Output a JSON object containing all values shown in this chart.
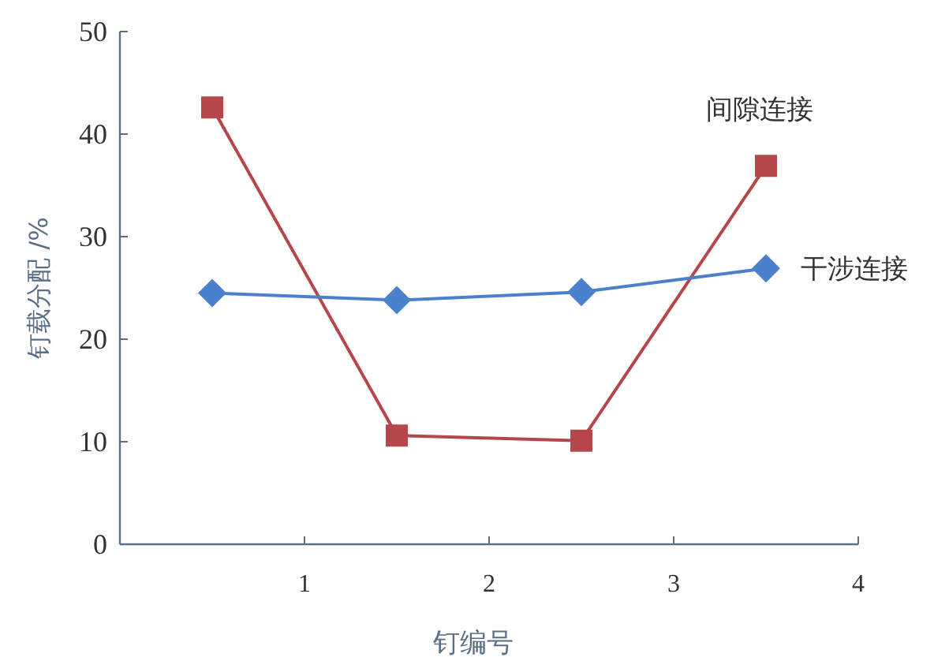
{
  "chart_data": {
    "type": "line",
    "xlabel": "钉编号",
    "ylabel": "钉载分配 /%",
    "x": [
      0.5,
      1.5,
      2.5,
      3.5
    ],
    "series": [
      {
        "name": "间隙连接",
        "color": "#b5474b",
        "marker": "square",
        "values": [
          42.6,
          10.6,
          10.1,
          36.9
        ]
      },
      {
        "name": "干涉连接",
        "color": "#4a80cc",
        "marker": "diamond",
        "values": [
          24.5,
          23.8,
          24.6,
          26.9
        ]
      }
    ],
    "xlim": [
      0,
      4
    ],
    "xticks": [
      1,
      2,
      3,
      4
    ],
    "ylim": [
      0,
      50
    ],
    "yticks": [
      0,
      10,
      20,
      30,
      40,
      50
    ]
  }
}
